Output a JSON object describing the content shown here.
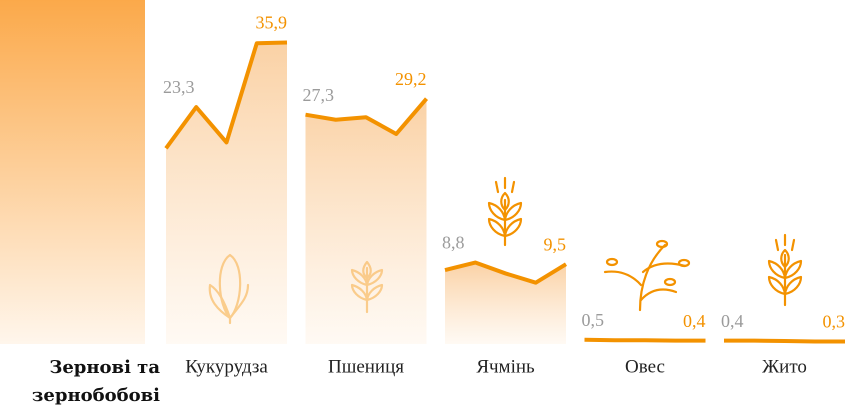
{
  "chart_data": {
    "type": "line",
    "group_label": "Зернові та зернобобові",
    "color": "#f39200",
    "first_label_color": "#9b9b9b",
    "ylim": [
      0,
      40
    ],
    "series": [
      {
        "name": "Кукурудза",
        "values": [
          23.3,
          28.2,
          24.0,
          35.8,
          35.9
        ],
        "value_labels": [
          "23,3",
          null,
          null,
          null,
          "35,9"
        ],
        "area": true
      },
      {
        "name": "Пшениця",
        "values": [
          27.3,
          26.7,
          27.0,
          25.0,
          29.2
        ],
        "value_labels": [
          "27,3",
          null,
          null,
          null,
          "29,2"
        ],
        "area": true
      },
      {
        "name": "Ячмінь",
        "values": [
          8.8,
          9.7,
          8.4,
          7.3,
          9.5
        ],
        "value_labels": [
          "8,8",
          null,
          null,
          null,
          "9,5"
        ],
        "area": true
      },
      {
        "name": "Овес",
        "values": [
          0.5,
          0.45,
          0.45,
          0.4,
          0.4
        ],
        "value_labels": [
          "0,5",
          null,
          null,
          null,
          "0,4"
        ],
        "area": false
      },
      {
        "name": "Жито",
        "values": [
          0.4,
          0.4,
          0.35,
          0.3,
          0.3
        ],
        "value_labels": [
          "0,4",
          null,
          null,
          null,
          "0,3"
        ],
        "area": false
      }
    ]
  }
}
